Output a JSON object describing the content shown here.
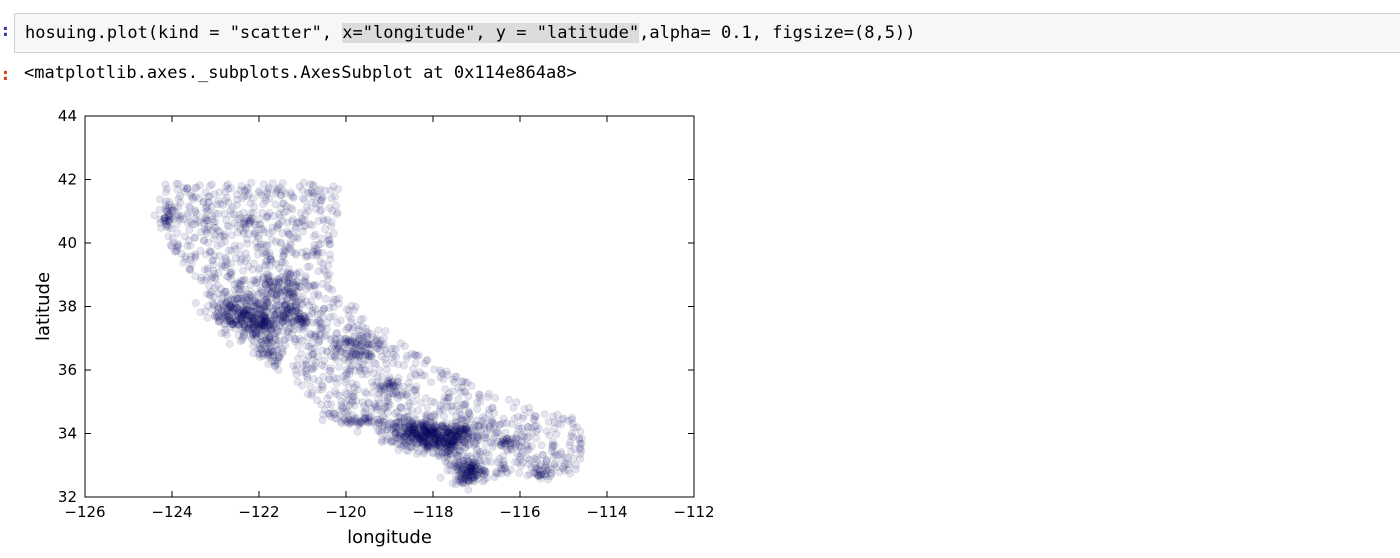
{
  "notebook": {
    "input_prompt": ":",
    "output_prompt": ":",
    "code_before": "hosuing.plot(kind = \"scatter\", ",
    "code_selected": "x=\"longitude\", y = \"latitude\"",
    "code_after": ",alpha= 0.1, figsize=(8,5))",
    "output_repr": "<matplotlib.axes._subplots.AxesSubplot at 0x114e864a8>"
  },
  "chart_data": {
    "type": "scatter",
    "title": "",
    "xlabel": "longitude",
    "ylabel": "latitude",
    "xlim": [
      -126,
      -112
    ],
    "ylim": [
      32,
      44
    ],
    "xticks": [
      -126,
      -124,
      -122,
      -120,
      -118,
      -116,
      -114,
      -112
    ],
    "yticks": [
      32,
      34,
      36,
      38,
      40,
      42,
      44
    ],
    "xtick_labels": [
      "−126",
      "−124",
      "−122",
      "−120",
      "−118",
      "−116",
      "−114",
      "−112"
    ],
    "ytick_labels": [
      "32",
      "34",
      "36",
      "38",
      "40",
      "42",
      "44"
    ],
    "alpha": 0.1,
    "marker_color": "#00007f",
    "grid": false,
    "legend": "none",
    "clusters": [
      {
        "lon": -122.4,
        "lat": 37.8,
        "spread_lon": 0.35,
        "spread_lat": 0.35,
        "count": 220
      },
      {
        "lon": -121.9,
        "lat": 37.4,
        "spread_lon": 0.25,
        "spread_lat": 0.25,
        "count": 120
      },
      {
        "lon": -121.5,
        "lat": 38.6,
        "spread_lon": 0.3,
        "spread_lat": 0.25,
        "count": 90
      },
      {
        "lon": -118.2,
        "lat": 34.0,
        "spread_lon": 0.5,
        "spread_lat": 0.22,
        "count": 320
      },
      {
        "lon": -117.2,
        "lat": 32.8,
        "spread_lon": 0.2,
        "spread_lat": 0.2,
        "count": 140
      },
      {
        "lon": -117.8,
        "lat": 33.7,
        "spread_lon": 0.3,
        "spread_lat": 0.2,
        "count": 130
      },
      {
        "lon": -119.8,
        "lat": 36.7,
        "spread_lon": 0.3,
        "spread_lat": 0.25,
        "count": 90
      },
      {
        "lon": -121.0,
        "lat": 37.6,
        "spread_lon": 0.25,
        "spread_lat": 0.25,
        "count": 70
      },
      {
        "lon": -117.3,
        "lat": 34.1,
        "spread_lon": 0.35,
        "spread_lat": 0.15,
        "count": 90
      },
      {
        "lon": -119.7,
        "lat": 34.4,
        "spread_lon": 0.35,
        "spread_lat": 0.1,
        "count": 45
      },
      {
        "lon": -121.8,
        "lat": 36.6,
        "spread_lon": 0.2,
        "spread_lat": 0.2,
        "count": 40
      },
      {
        "lon": -124.1,
        "lat": 40.8,
        "spread_lon": 0.1,
        "spread_lat": 0.2,
        "count": 30
      },
      {
        "lon": -116.2,
        "lat": 33.7,
        "spread_lon": 0.2,
        "spread_lat": 0.12,
        "count": 35
      },
      {
        "lon": -115.5,
        "lat": 32.8,
        "spread_lon": 0.1,
        "spread_lat": 0.1,
        "count": 25
      },
      {
        "lon": -119.0,
        "lat": 35.4,
        "spread_lon": 0.2,
        "spread_lat": 0.2,
        "count": 35
      },
      {
        "lon": -122.3,
        "lat": 40.6,
        "spread_lon": 0.15,
        "spread_lat": 0.15,
        "count": 20
      },
      {
        "lon": -121.3,
        "lat": 37.9,
        "spread_lon": 0.2,
        "spread_lat": 0.2,
        "count": 40
      }
    ],
    "sparse_region": [
      [
        -124.3,
        41.9
      ],
      [
        -124.3,
        40.3
      ],
      [
        -123.4,
        38.8
      ],
      [
        -122.7,
        37.4
      ],
      [
        -121.9,
        36.3
      ],
      [
        -120.9,
        35.3
      ],
      [
        -120.6,
        34.5
      ],
      [
        -119.3,
        34.2
      ],
      [
        -118.6,
        33.9
      ],
      [
        -117.3,
        32.6
      ],
      [
        -116.0,
        32.6
      ],
      [
        -114.6,
        32.7
      ],
      [
        -114.5,
        34.4
      ],
      [
        -116.6,
        35.2
      ],
      [
        -118.0,
        36.2
      ],
      [
        -119.3,
        37.5
      ],
      [
        -120.4,
        38.7
      ],
      [
        -120.1,
        41.9
      ]
    ],
    "sparse_count": 1400
  }
}
